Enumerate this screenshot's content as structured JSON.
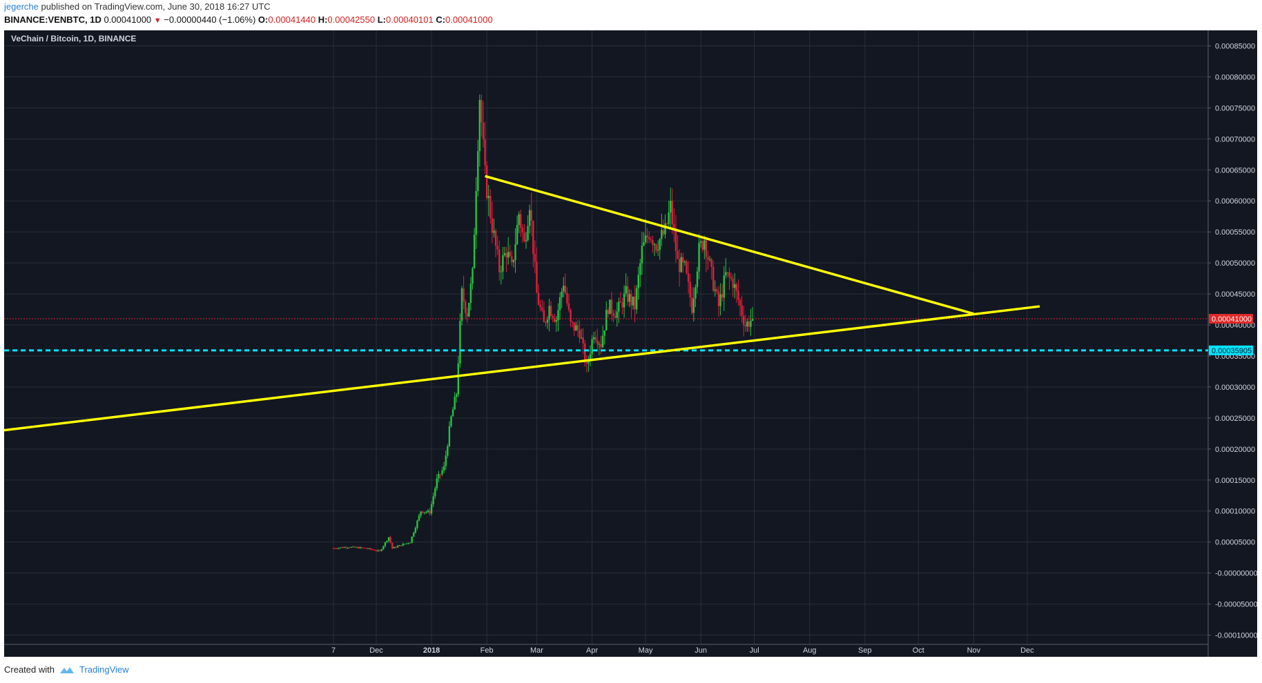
{
  "header": {
    "user": "jegerche",
    "published_text": " published on TradingView.com, June 30, 2018 16:27 UTC",
    "symbol": "BINANCE:VENBTC, 1D",
    "last": "0.00041000",
    "change": "−0.00000440 (−1.06%)",
    "o_label": "O:",
    "o": "0.00041440",
    "h_label": "H:",
    "h": "0.00042550",
    "l_label": "L:",
    "l": "0.00040101",
    "c_label": "C:",
    "c": "0.00041000"
  },
  "footer": {
    "created_with": "Created with",
    "brand": "TradingView"
  },
  "colors": {
    "background": "#131722",
    "grid": "#2a2e39",
    "up": "#26c440",
    "down": "#e0203a",
    "trendline": "#ffff00",
    "support": "#00e5ff",
    "price_line": "#e02a2a",
    "axis_text": "#d1d4dc"
  },
  "chart_data": {
    "type": "candlestick",
    "title": "VeChain / Bitcoin, 1D, BINANCE",
    "y_ticks": [
      "0.00085000",
      "0.00080000",
      "0.00075000",
      "0.00070000",
      "0.00065000",
      "0.00060000",
      "0.00055000",
      "0.00050000",
      "0.00045000",
      "0.00040000",
      "0.00035000",
      "0.00030000",
      "0.00025000",
      "0.00020000",
      "0.00015000",
      "0.00010000",
      "0.00005000",
      "-0.00000000",
      "-0.00005000",
      "-0.00010000"
    ],
    "x_ticks": [
      "7",
      "Dec",
      "2018",
      "Feb",
      "Mar",
      "Apr",
      "May",
      "Jun",
      "Jul",
      "Aug",
      "Sep",
      "Oct",
      "Nov",
      "Dec"
    ],
    "bold_x_tick": "2018",
    "ylim": [
      -0.000115,
      0.000875
    ],
    "last_price": "0.00041000",
    "support_level": "0.00035905",
    "price_path": [
      [
        "2017-11-07",
        4e-05
      ],
      [
        "2017-11-15",
        4.2e-05
      ],
      [
        "2017-11-25",
        4e-05
      ],
      [
        "2017-12-03",
        3.5e-05
      ],
      [
        "2017-12-08",
        5.8e-05
      ],
      [
        "2017-12-10",
        4e-05
      ],
      [
        "2017-12-20",
        5e-05
      ],
      [
        "2017-12-26",
        0.0001
      ],
      [
        "2017-12-31",
        9.8e-05
      ],
      [
        "2018-01-04",
        0.00015
      ],
      [
        "2018-01-08",
        0.00017
      ],
      [
        "2018-01-12",
        0.00025
      ],
      [
        "2018-01-15",
        0.00029
      ],
      [
        "2018-01-18",
        0.00045
      ],
      [
        "2018-01-21",
        0.00042
      ],
      [
        "2018-01-24",
        0.00048
      ],
      [
        "2018-01-26",
        0.00063
      ],
      [
        "2018-01-28",
        0.00077
      ],
      [
        "2018-01-31",
        0.00064
      ],
      [
        "2018-02-04",
        0.00056
      ],
      [
        "2018-02-08",
        0.00049
      ],
      [
        "2018-02-12",
        0.00052
      ],
      [
        "2018-02-15",
        0.00049
      ],
      [
        "2018-02-19",
        0.00058
      ],
      [
        "2018-02-22",
        0.00053
      ],
      [
        "2018-02-25",
        0.0006
      ],
      [
        "2018-03-01",
        0.00045
      ],
      [
        "2018-03-05",
        0.0004
      ],
      [
        "2018-03-08",
        0.00043
      ],
      [
        "2018-03-12",
        0.00041
      ],
      [
        "2018-03-16",
        0.00047
      ],
      [
        "2018-03-20",
        0.0004
      ],
      [
        "2018-03-25",
        0.00039
      ],
      [
        "2018-03-29",
        0.00033
      ],
      [
        "2018-04-02",
        0.00039
      ],
      [
        "2018-04-06",
        0.00037
      ],
      [
        "2018-04-10",
        0.00043
      ],
      [
        "2018-04-15",
        0.00042
      ],
      [
        "2018-04-20",
        0.00045
      ],
      [
        "2018-04-25",
        0.00043
      ],
      [
        "2018-04-29",
        0.00052
      ],
      [
        "2018-05-03",
        0.00055
      ],
      [
        "2018-05-07",
        0.00053
      ],
      [
        "2018-05-12",
        0.00055
      ],
      [
        "2018-05-15",
        0.00059
      ],
      [
        "2018-05-19",
        0.0005
      ],
      [
        "2018-05-23",
        0.00049
      ],
      [
        "2018-05-27",
        0.00043
      ],
      [
        "2018-05-31",
        0.00052
      ],
      [
        "2018-06-03",
        0.00054
      ],
      [
        "2018-06-07",
        0.00048
      ],
      [
        "2018-06-11",
        0.00043
      ],
      [
        "2018-06-15",
        0.00048
      ],
      [
        "2018-06-19",
        0.00047
      ],
      [
        "2018-06-23",
        0.00043
      ],
      [
        "2018-06-26",
        0.0004
      ],
      [
        "2018-06-30",
        0.00041
      ]
    ],
    "trendlines": [
      {
        "name": "upper",
        "from": [
          "2018-01-31",
          0.00064
        ],
        "to": [
          "2018-11-01",
          0.000418
        ]
      },
      {
        "name": "lower",
        "from": [
          "2017-02-22",
          0.000205
        ],
        "to": [
          "2018-12-08",
          0.00043
        ]
      }
    ]
  }
}
